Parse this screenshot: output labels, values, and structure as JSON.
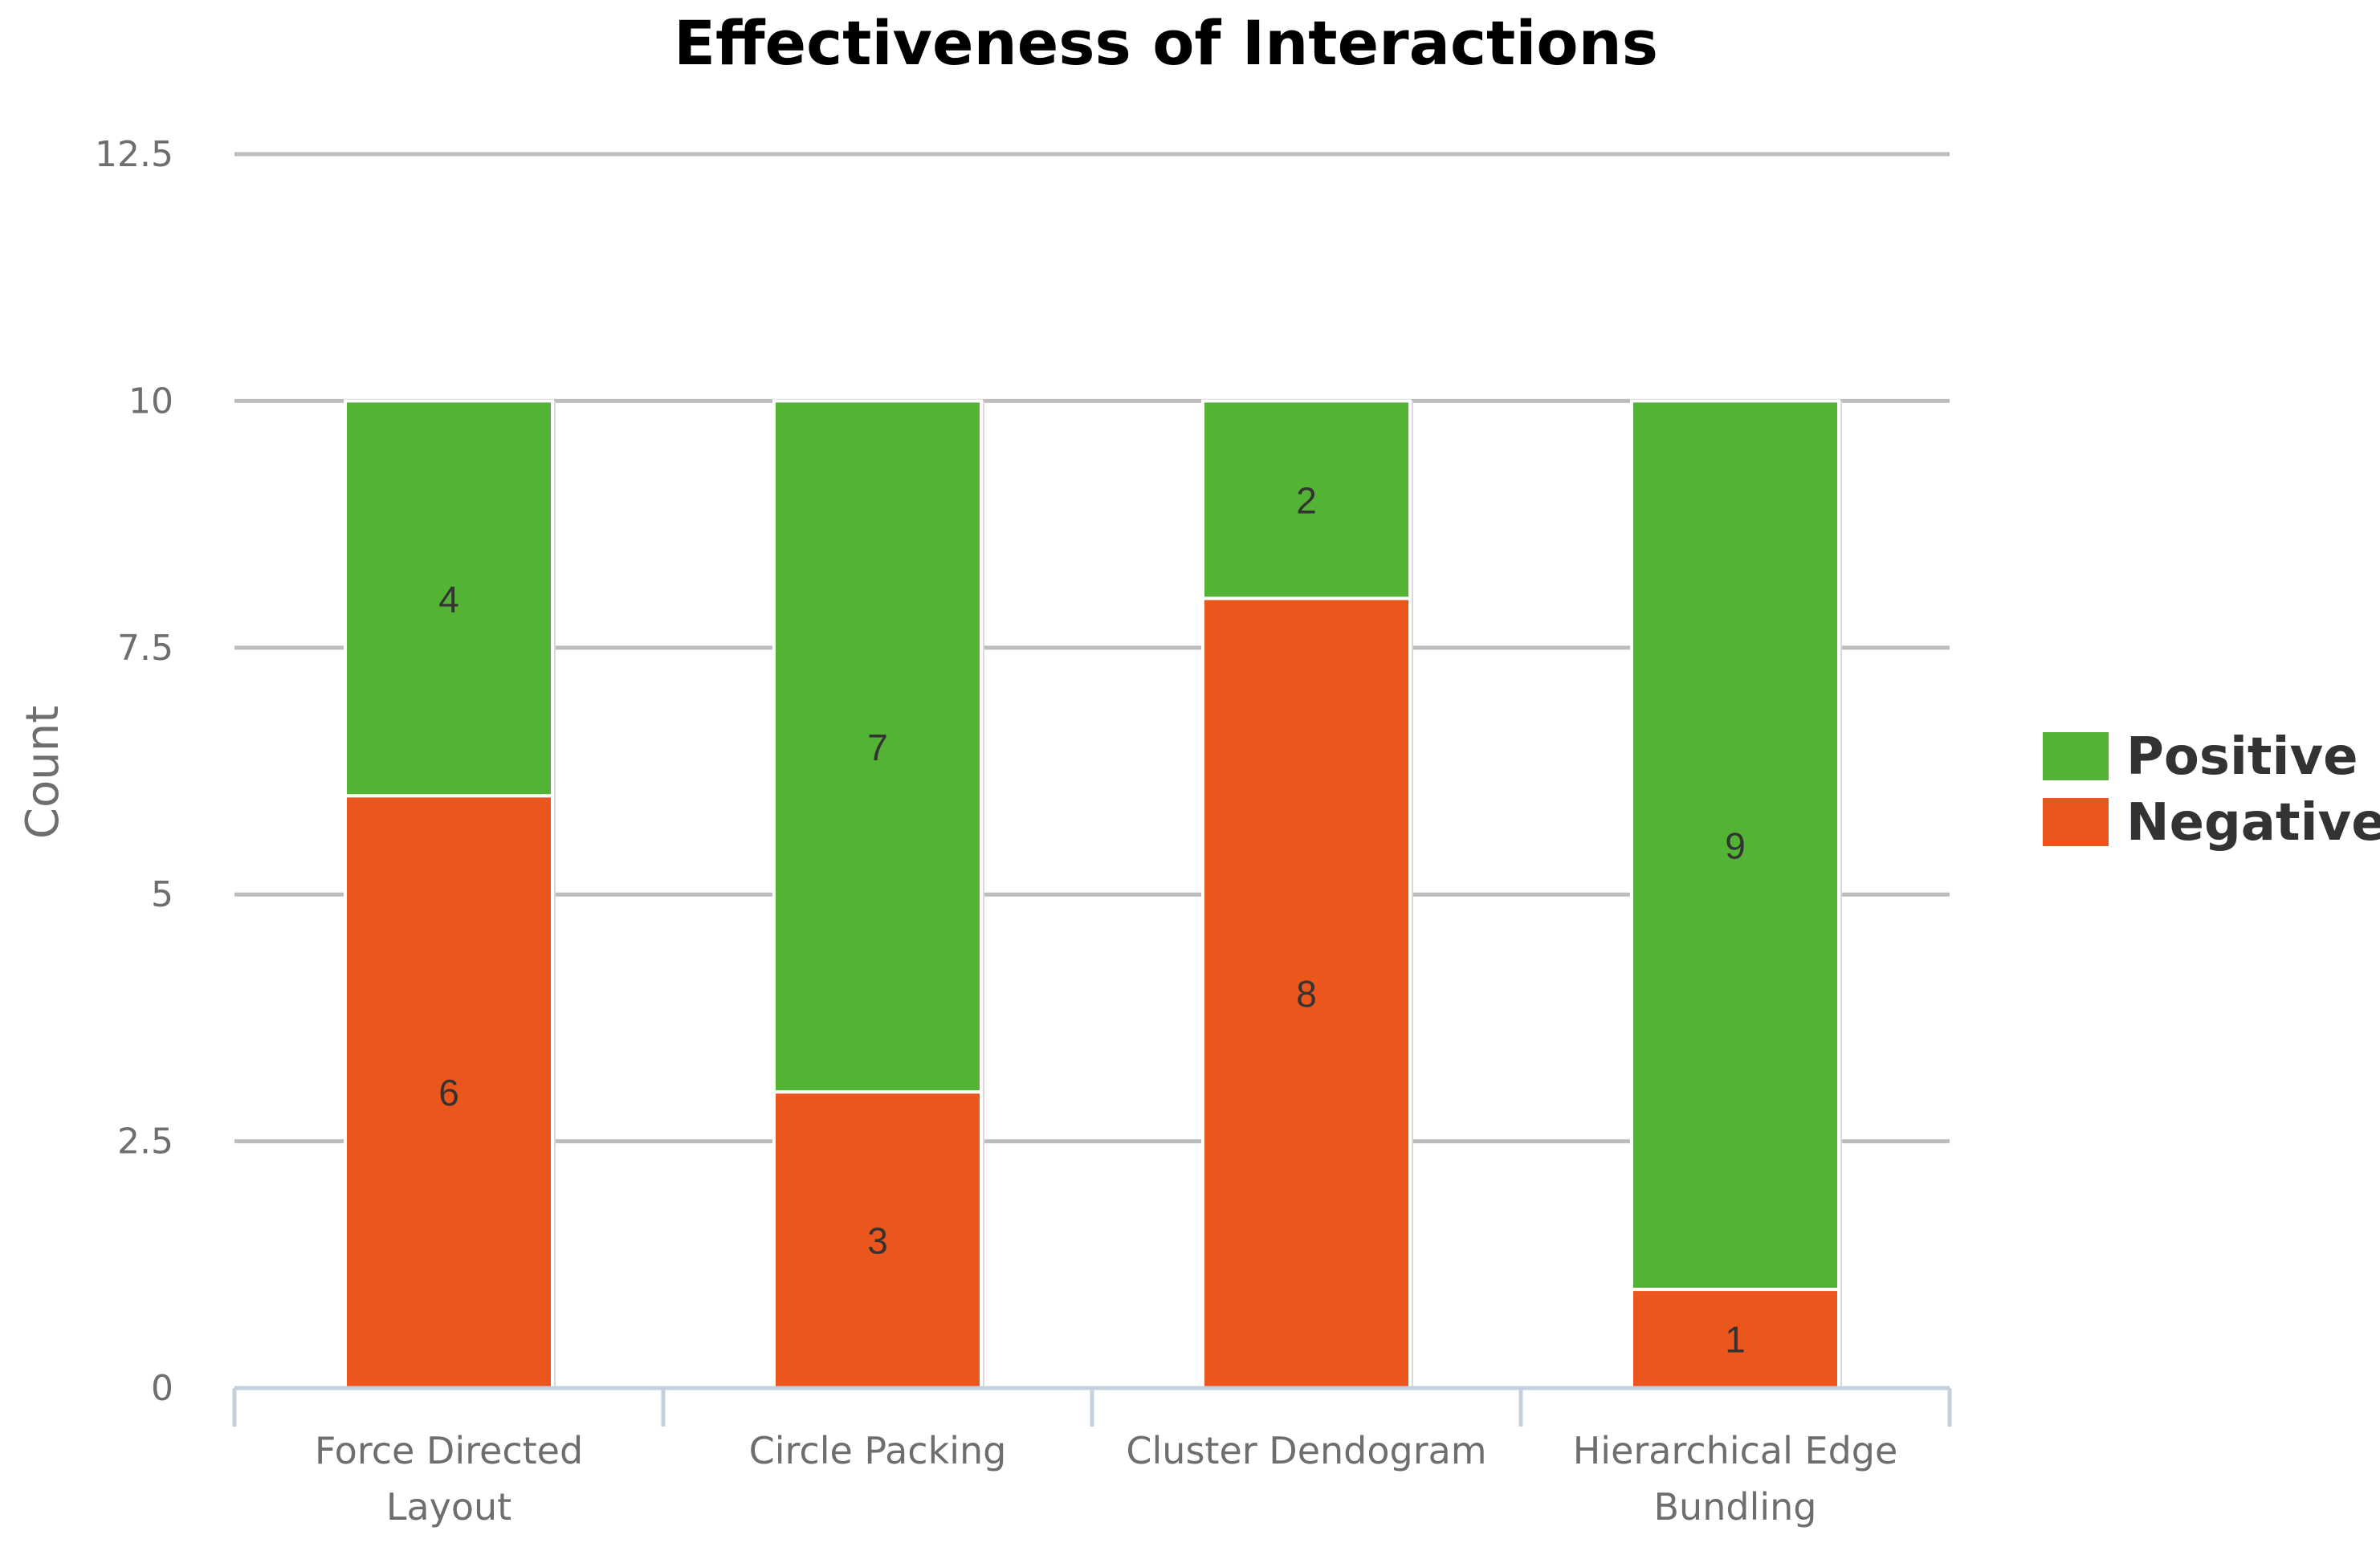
{
  "chart_data": {
    "type": "bar",
    "stacked": true,
    "title": "Effectiveness of Interactions",
    "ylabel": "Count",
    "xlabel": "",
    "ylim": [
      0,
      12.5
    ],
    "yticks": [
      0,
      2.5,
      5,
      7.5,
      10,
      12.5
    ],
    "ytick_labels": [
      "0",
      "2.5",
      "5",
      "7.5",
      "10",
      "12.5"
    ],
    "categories": [
      [
        "Force Directed",
        "Layout"
      ],
      [
        "Circle Packing"
      ],
      [
        "Cluster Dendogram"
      ],
      [
        "Hierarchical Edge",
        "Bundling"
      ]
    ],
    "series": [
      {
        "name": "Negative",
        "color": "#eb561c",
        "values": [
          6,
          3,
          8,
          1
        ]
      },
      {
        "name": "Positive",
        "color": "#52b335",
        "values": [
          4,
          7,
          2,
          9
        ]
      }
    ],
    "legend": {
      "position": "right",
      "entries": [
        {
          "name": "Positive",
          "color": "#52b335"
        },
        {
          "name": "Negative",
          "color": "#eb561c"
        }
      ]
    },
    "grid": true,
    "grid_color": "#bdbdbd",
    "axis_color": "#c3d0dd"
  }
}
